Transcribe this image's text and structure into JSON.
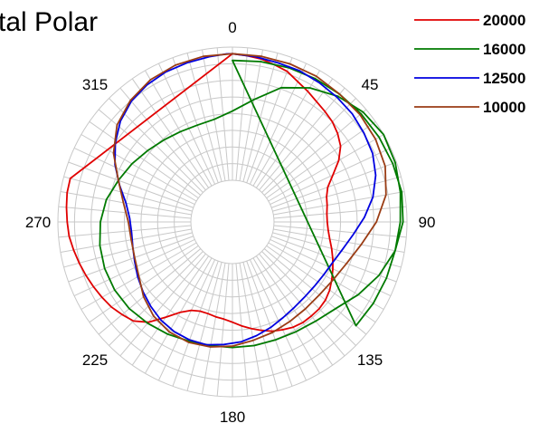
{
  "chart_data": {
    "type": "polar",
    "title": "tal Polar",
    "angle_ticks": [
      "0",
      "45",
      "90",
      "135",
      "180",
      "225",
      "270",
      "315"
    ],
    "r_scale": {
      "min": 0,
      "max": 1,
      "rings": 8,
      "spokes": 72
    },
    "grid": true,
    "legend_position": "top-right",
    "series": [
      {
        "name": "20000",
        "color": "#e00000",
        "r": [
          0.95,
          0.94,
          0.93,
          0.91,
          0.89,
          0.85,
          0.82,
          0.79,
          0.77,
          0.75,
          0.72,
          0.68,
          0.61,
          0.52,
          0.45,
          0.42,
          0.41,
          0.4,
          0.4,
          0.41,
          0.43,
          0.46,
          0.49,
          0.52,
          0.55,
          0.58,
          0.6,
          0.61,
          0.61,
          0.61,
          0.6,
          0.58,
          0.56,
          0.53,
          0.5,
          0.47,
          0.44,
          0.42,
          0.41,
          0.4,
          0.4,
          0.42,
          0.47,
          0.56,
          0.67,
          0.74,
          0.77,
          0.8,
          0.82,
          0.84,
          0.86,
          0.88,
          0.9,
          0.92,
          0.93,
          0.94,
          0.95,
          0.95
        ],
        "a": [
          0,
          5,
          10,
          15,
          20,
          25,
          30,
          35,
          40,
          45,
          50,
          55,
          60,
          65,
          70,
          75,
          80,
          85,
          90,
          95,
          100,
          105,
          110,
          115,
          120,
          125,
          130,
          135,
          140,
          145,
          150,
          155,
          160,
          165,
          170,
          175,
          180,
          185,
          190,
          195,
          200,
          205,
          210,
          215,
          220,
          225,
          230,
          235,
          240,
          245,
          250,
          255,
          260,
          265,
          270,
          275,
          280,
          285
        ]
      },
      {
        "name": "16000",
        "color": "#007a00",
        "r": [
          0.9,
          0.91,
          0.92,
          0.93,
          0.94,
          0.95,
          0.96,
          0.97,
          0.98,
          0.97,
          0.93,
          0.86,
          0.78,
          0.7,
          0.66,
          0.64,
          0.63,
          0.63,
          0.63,
          0.63,
          0.64,
          0.66,
          0.68,
          0.7,
          0.71,
          0.71,
          0.7,
          0.68,
          0.65,
          0.6,
          0.56,
          0.52,
          0.49,
          0.47,
          0.46,
          0.47,
          0.52,
          0.62,
          0.76,
          0.85,
          0.92,
          0.97,
          1.0,
          0.99,
          0.97,
          0.95,
          0.93,
          0.92,
          0.91,
          0.9
        ],
        "a": [
          0,
          10,
          20,
          30,
          40,
          50,
          60,
          70,
          80,
          90,
          100,
          110,
          120,
          130,
          140,
          150,
          160,
          170,
          180,
          190,
          200,
          210,
          220,
          230,
          240,
          250,
          260,
          270,
          280,
          290,
          300,
          310,
          320,
          330,
          340,
          350,
          0,
          10,
          20,
          30,
          40,
          50,
          60,
          70,
          80,
          90,
          100,
          110,
          120,
          130
        ]
      },
      {
        "name": "12500",
        "color": "#0000e0",
        "r": [
          0.95,
          0.94,
          0.93,
          0.93,
          0.92,
          0.91,
          0.9,
          0.88,
          0.86,
          0.82,
          0.76,
          0.68,
          0.6,
          0.54,
          0.5,
          0.48,
          0.47,
          0.47,
          0.48,
          0.5,
          0.53,
          0.56,
          0.59,
          0.61,
          0.63,
          0.63,
          0.62,
          0.6,
          0.57,
          0.54,
          0.51,
          0.48,
          0.46,
          0.45,
          0.46,
          0.5,
          0.58,
          0.67,
          0.75,
          0.82,
          0.87,
          0.9,
          0.92,
          0.93,
          0.94,
          0.95
        ],
        "a": [
          0,
          8,
          16,
          24,
          32,
          40,
          48,
          56,
          64,
          72,
          80,
          88,
          96,
          104,
          112,
          120,
          128,
          136,
          144,
          152,
          160,
          168,
          176,
          184,
          192,
          200,
          208,
          216,
          224,
          232,
          240,
          248,
          256,
          264,
          272,
          280,
          288,
          296,
          304,
          312,
          320,
          328,
          336,
          344,
          352,
          358
        ]
      },
      {
        "name": "10000",
        "color": "#9a3c14",
        "r": [
          0.95,
          0.95,
          0.95,
          0.95,
          0.94,
          0.94,
          0.93,
          0.91,
          0.86,
          0.77,
          0.67,
          0.6,
          0.56,
          0.54,
          0.54,
          0.55,
          0.57,
          0.59,
          0.62,
          0.64,
          0.65,
          0.64,
          0.61,
          0.56,
          0.5,
          0.47,
          0.46,
          0.47,
          0.52,
          0.6,
          0.72,
          0.82,
          0.88,
          0.92,
          0.94,
          0.95
        ],
        "a": [
          0,
          10,
          20,
          30,
          40,
          50,
          60,
          70,
          80,
          90,
          100,
          110,
          120,
          130,
          140,
          150,
          160,
          170,
          180,
          190,
          200,
          210,
          220,
          230,
          240,
          250,
          260,
          270,
          280,
          290,
          300,
          310,
          320,
          330,
          340,
          350
        ]
      }
    ]
  }
}
